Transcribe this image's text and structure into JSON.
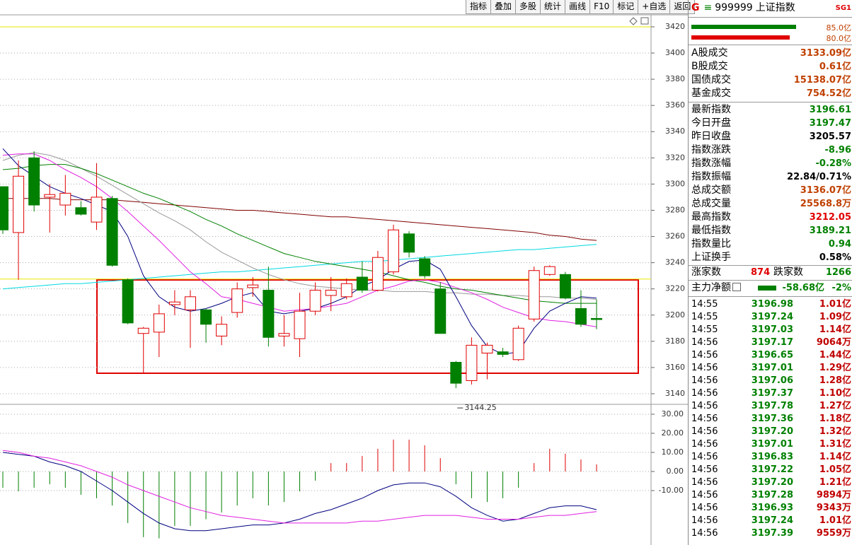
{
  "toolbar": {
    "buttons": [
      "指标",
      "叠加",
      "多股",
      "统计",
      "画线",
      "F10",
      "标记",
      "+自选",
      "返回"
    ]
  },
  "chart": {
    "type": "candlestick",
    "ylim": [
      3131.9,
      3428.6
    ],
    "yticks": [
      3420,
      3400,
      3380,
      3360,
      3340,
      3320,
      3300,
      3280,
      3260,
      3240,
      3220,
      3200,
      3180,
      3160,
      3140
    ],
    "grid": true,
    "up_color": "#e00000",
    "down_color": "#008000",
    "reference_lines": [
      3420,
      3227.5
    ],
    "reference_color": "#e8e800",
    "candles": [
      {
        "o": 3298,
        "h": 3298,
        "l": 3262,
        "c": 3265
      },
      {
        "o": 3263,
        "h": 3318,
        "l": 3227,
        "c": 3306
      },
      {
        "o": 3320,
        "h": 3325,
        "l": 3279,
        "c": 3284
      },
      {
        "o": 3290,
        "h": 3300,
        "l": 3263,
        "c": 3292
      },
      {
        "o": 3284,
        "h": 3307,
        "l": 3276,
        "c": 3293
      },
      {
        "o": 3282,
        "h": 3287,
        "l": 3276,
        "c": 3277
      },
      {
        "o": 3271,
        "h": 3316,
        "l": 3265,
        "c": 3290
      },
      {
        "o": 3289,
        "h": 3291,
        "l": 3237,
        "c": 3238
      },
      {
        "o": 3227,
        "h": 3228,
        "l": 3193,
        "c": 3194
      },
      {
        "o": 3186,
        "h": 3191,
        "l": 3156,
        "c": 3190
      },
      {
        "o": 3187,
        "h": 3208,
        "l": 3168,
        "c": 3201
      },
      {
        "o": 3208,
        "h": 3219,
        "l": 3200,
        "c": 3210
      },
      {
        "o": 3204,
        "h": 3219,
        "l": 3175,
        "c": 3214
      },
      {
        "o": 3204,
        "h": 3205,
        "l": 3179,
        "c": 3193
      },
      {
        "o": 3184,
        "h": 3199,
        "l": 3177,
        "c": 3193
      },
      {
        "o": 3202,
        "h": 3225,
        "l": 3198,
        "c": 3220
      },
      {
        "o": 3221,
        "h": 3229,
        "l": 3214,
        "c": 3223
      },
      {
        "o": 3219,
        "h": 3237,
        "l": 3176,
        "c": 3183
      },
      {
        "o": 3184,
        "h": 3200,
        "l": 3176,
        "c": 3186
      },
      {
        "o": 3182,
        "h": 3217,
        "l": 3168,
        "c": 3203
      },
      {
        "o": 3203,
        "h": 3225,
        "l": 3200,
        "c": 3219
      },
      {
        "o": 3215,
        "h": 3229,
        "l": 3203,
        "c": 3219
      },
      {
        "o": 3214,
        "h": 3228,
        "l": 3212,
        "c": 3224
      },
      {
        "o": 3229,
        "h": 3241,
        "l": 3217,
        "c": 3219
      },
      {
        "o": 3219,
        "h": 3249,
        "l": 3218,
        "c": 3244
      },
      {
        "o": 3233,
        "h": 3269,
        "l": 3231,
        "c": 3265
      },
      {
        "o": 3262,
        "h": 3264,
        "l": 3244,
        "c": 3248
      },
      {
        "o": 3243,
        "h": 3245,
        "l": 3228,
        "c": 3230
      },
      {
        "o": 3220,
        "h": 3225,
        "l": 3186,
        "c": 3186
      },
      {
        "o": 3164,
        "h": 3165,
        "l": 3144.25,
        "c": 3148
      },
      {
        "o": 3150,
        "h": 3183,
        "l": 3147,
        "c": 3177
      },
      {
        "o": 3171,
        "h": 3179,
        "l": 3151,
        "c": 3177
      },
      {
        "o": 3172,
        "h": 3175,
        "l": 3168,
        "c": 3170
      },
      {
        "o": 3166,
        "h": 3192,
        "l": 3165,
        "c": 3190
      },
      {
        "o": 3197,
        "h": 3237,
        "l": 3195,
        "c": 3234
      },
      {
        "o": 3231,
        "h": 3238,
        "l": 3230,
        "c": 3237
      },
      {
        "o": 3231,
        "h": 3233,
        "l": 3212,
        "c": 3213
      },
      {
        "o": 3205,
        "h": 3219,
        "l": 3191,
        "c": 3193
      },
      {
        "o": 3197.47,
        "h": 3212.05,
        "l": 3189.21,
        "c": 3196.61
      }
    ],
    "low_marker": 29,
    "ma_lines": [
      {
        "color": "#00d8e0",
        "values": [
          3220,
          3221,
          3222,
          3223,
          3224,
          3224,
          3225,
          3226,
          3227,
          3228,
          3229,
          3230,
          3231,
          3232,
          3233,
          3233,
          3234,
          3235,
          3236,
          3237,
          3238,
          3239,
          3240,
          3241,
          3241,
          3242,
          3243,
          3244,
          3245,
          3246,
          3247,
          3248,
          3249,
          3250,
          3250,
          3251,
          3252,
          3253,
          3254
        ]
      },
      {
        "color": "#800000",
        "values": [
          3289,
          3289,
          3289,
          3289,
          3288,
          3288,
          3288,
          3288,
          3287,
          3286,
          3285,
          3284,
          3283,
          3282,
          3281,
          3280,
          3280,
          3279,
          3278,
          3277,
          3276,
          3275,
          3275,
          3274,
          3273,
          3272,
          3271,
          3270,
          3269,
          3268,
          3267,
          3266,
          3265,
          3264,
          3263,
          3261,
          3260,
          3258,
          3257
        ]
      },
      {
        "color": "#999999",
        "values": [
          3318,
          3322,
          3324,
          3322,
          3318,
          3312,
          3306,
          3299,
          3292,
          3285,
          3278,
          3272,
          3265,
          3256,
          3248,
          3242,
          3236,
          3231,
          3227,
          3224,
          3222,
          3221,
          3220,
          3219,
          3219,
          3218,
          3218,
          3218,
          3217,
          3217,
          3216,
          3216,
          3215,
          3215,
          3214,
          3214,
          3213,
          3213,
          3212
        ]
      },
      {
        "color": "#008000",
        "values": [
          3311,
          3312,
          3314,
          3315,
          3315,
          3312,
          3308,
          3303,
          3298,
          3293,
          3289,
          3284,
          3279,
          3273,
          3268,
          3262,
          3257,
          3252,
          3247,
          3244,
          3241,
          3239,
          3237,
          3235,
          3233,
          3230,
          3227,
          3225,
          3222,
          3220,
          3219,
          3217,
          3215,
          3213,
          3211,
          3210,
          3209,
          3209,
          3209
        ]
      },
      {
        "color": "#e020e0",
        "values": [
          3322,
          3323,
          3323,
          3318,
          3311,
          3305,
          3298,
          3289,
          3279,
          3268,
          3257,
          3245,
          3233,
          3224,
          3214,
          3212,
          3209,
          3206,
          3203,
          3204,
          3205,
          3207,
          3209,
          3214,
          3219,
          3222,
          3226,
          3227,
          3225,
          3221,
          3217,
          3212,
          3206,
          3202,
          3198,
          3196,
          3195,
          3193,
          3191
        ]
      },
      {
        "color": "#000080",
        "values": [
          3327,
          3314,
          3306,
          3298,
          3293,
          3289,
          3284,
          3279,
          3260,
          3230,
          3214,
          3206,
          3203,
          3205,
          3209,
          3214,
          3217,
          3203,
          3201,
          3203,
          3205,
          3209,
          3214,
          3222,
          3227,
          3235,
          3241,
          3242,
          3235,
          3214,
          3192,
          3176,
          3170,
          3172,
          3190,
          3203,
          3209,
          3214,
          3213
        ]
      }
    ]
  },
  "macd": {
    "type": "bar",
    "ylim": [
      -38.5,
      34.8
    ],
    "yticks": [
      {
        "value": 30,
        "label": "30.00"
      },
      {
        "value": 20,
        "label": "20.00"
      },
      {
        "value": 10,
        "label": "10.00"
      },
      {
        "value": 0,
        "label": "0.00"
      },
      {
        "value": -10,
        "label": "-10.00"
      }
    ],
    "up_color": "#e00000",
    "down_color": "#008000",
    "values": [
      -8.5,
      -10.4,
      -8.5,
      -6.7,
      -8.5,
      -12.2,
      -14,
      -17.8,
      -27,
      -34.4,
      -35,
      -28.5,
      -28.5,
      -25,
      -21.5,
      -17.8,
      -14,
      -17.8,
      -16,
      -10.4,
      -4.8,
      4.4,
      4.4,
      8.1,
      11.9,
      16.7,
      16.7,
      13.7,
      7,
      -6.7,
      -14,
      -16,
      -14,
      -8.5,
      4.4,
      11.9,
      9.3,
      6.3,
      3.7
    ],
    "lines": [
      {
        "color": "#000080",
        "values": [
          10,
          9,
          8,
          5,
          3,
          0,
          -5,
          -10,
          -16,
          -22,
          -27,
          -30,
          -31,
          -31,
          -30,
          -29,
          -28,
          -28,
          -27,
          -25,
          -22,
          -20,
          -17,
          -14,
          -10,
          -7,
          -6,
          -6,
          -8,
          -13,
          -19,
          -23,
          -26,
          -25,
          -22,
          -19,
          -18,
          -18,
          -20
        ]
      },
      {
        "color": "#e020e0",
        "values": [
          11,
          10,
          8,
          7,
          5,
          3,
          0,
          -3,
          -7,
          -10,
          -13,
          -16,
          -19,
          -21,
          -23,
          -24,
          -25,
          -26,
          -27,
          -27,
          -27,
          -27,
          -27,
          -26,
          -26,
          -25,
          -24,
          -23,
          -23,
          -23,
          -24,
          -25,
          -25,
          -25,
          -24,
          -23,
          -23,
          -22,
          -21
        ]
      }
    ]
  },
  "panel": {
    "flag": "G",
    "code": "999999",
    "name": "上证指数",
    "tag": "SG1",
    "bars": [
      {
        "value": 85.0,
        "label": "85.0亿",
        "color": "#008000"
      },
      {
        "value": 80.0,
        "label": "80.0亿",
        "color": "#e00000"
      }
    ],
    "turnover": [
      {
        "label": "A股成交",
        "value": "3133.09亿",
        "color": "#c04000"
      },
      {
        "label": "B股成交",
        "value": "0.61亿",
        "color": "#c04000"
      },
      {
        "label": "国债成交",
        "value": "15138.07亿",
        "color": "#c04000"
      },
      {
        "label": "基金成交",
        "value": "754.52亿",
        "color": "#c04000"
      }
    ],
    "quote": [
      {
        "label": "最新指数",
        "value": "3196.61",
        "color": "#008000"
      },
      {
        "label": "今日开盘",
        "value": "3197.47",
        "color": "#008000"
      },
      {
        "label": "昨日收盘",
        "value": "3205.57",
        "color": "#000000"
      },
      {
        "label": "指数涨跌",
        "value": "-8.96",
        "color": "#008000"
      },
      {
        "label": "指数涨幅",
        "value": "-0.28%",
        "color": "#008000"
      },
      {
        "label": "指数振幅",
        "value": "22.84/0.71%",
        "color": "#000000"
      },
      {
        "label": "总成交额",
        "value": "3136.07亿",
        "color": "#c04000"
      },
      {
        "label": "总成交量",
        "value": "25568.8万",
        "color": "#c04000"
      },
      {
        "label": "最高指数",
        "value": "3212.05",
        "color": "#e00000"
      },
      {
        "label": "最低指数",
        "value": "3189.21",
        "color": "#008000"
      },
      {
        "label": "指数量比",
        "value": "0.94",
        "color": "#008000"
      },
      {
        "label": "上证换手",
        "value": "0.58%",
        "color": "#000000"
      }
    ],
    "breadth": {
      "up_label": "涨家数",
      "up": "874",
      "down_label": "跌家数",
      "down": "1266"
    },
    "main_force": {
      "label": "主力净额",
      "value": "-58.68亿",
      "pct": "-2%"
    },
    "ticks": [
      [
        "14:55",
        "3196.98",
        "1.01亿"
      ],
      [
        "14:55",
        "3197.24",
        "1.09亿"
      ],
      [
        "14:55",
        "3197.03",
        "1.14亿"
      ],
      [
        "14:56",
        "3197.17",
        "9064万"
      ],
      [
        "14:56",
        "3196.65",
        "1.44亿"
      ],
      [
        "14:56",
        "3197.01",
        "1.29亿"
      ],
      [
        "14:56",
        "3197.06",
        "1.28亿"
      ],
      [
        "14:56",
        "3197.37",
        "1.10亿"
      ],
      [
        "14:56",
        "3197.78",
        "1.27亿"
      ],
      [
        "14:56",
        "3197.36",
        "1.18亿"
      ],
      [
        "14:56",
        "3197.20",
        "1.32亿"
      ],
      [
        "14:56",
        "3197.01",
        "1.31亿"
      ],
      [
        "14:56",
        "3196.83",
        "1.14亿"
      ],
      [
        "14:56",
        "3197.22",
        "1.05亿"
      ],
      [
        "14:56",
        "3197.20",
        "1.21亿"
      ],
      [
        "14:56",
        "3197.28",
        "9894万"
      ],
      [
        "14:56",
        "3196.93",
        "9343万"
      ],
      [
        "14:56",
        "3197.24",
        "1.01亿"
      ],
      [
        "14:56",
        "3197.39",
        "9559万"
      ]
    ]
  }
}
